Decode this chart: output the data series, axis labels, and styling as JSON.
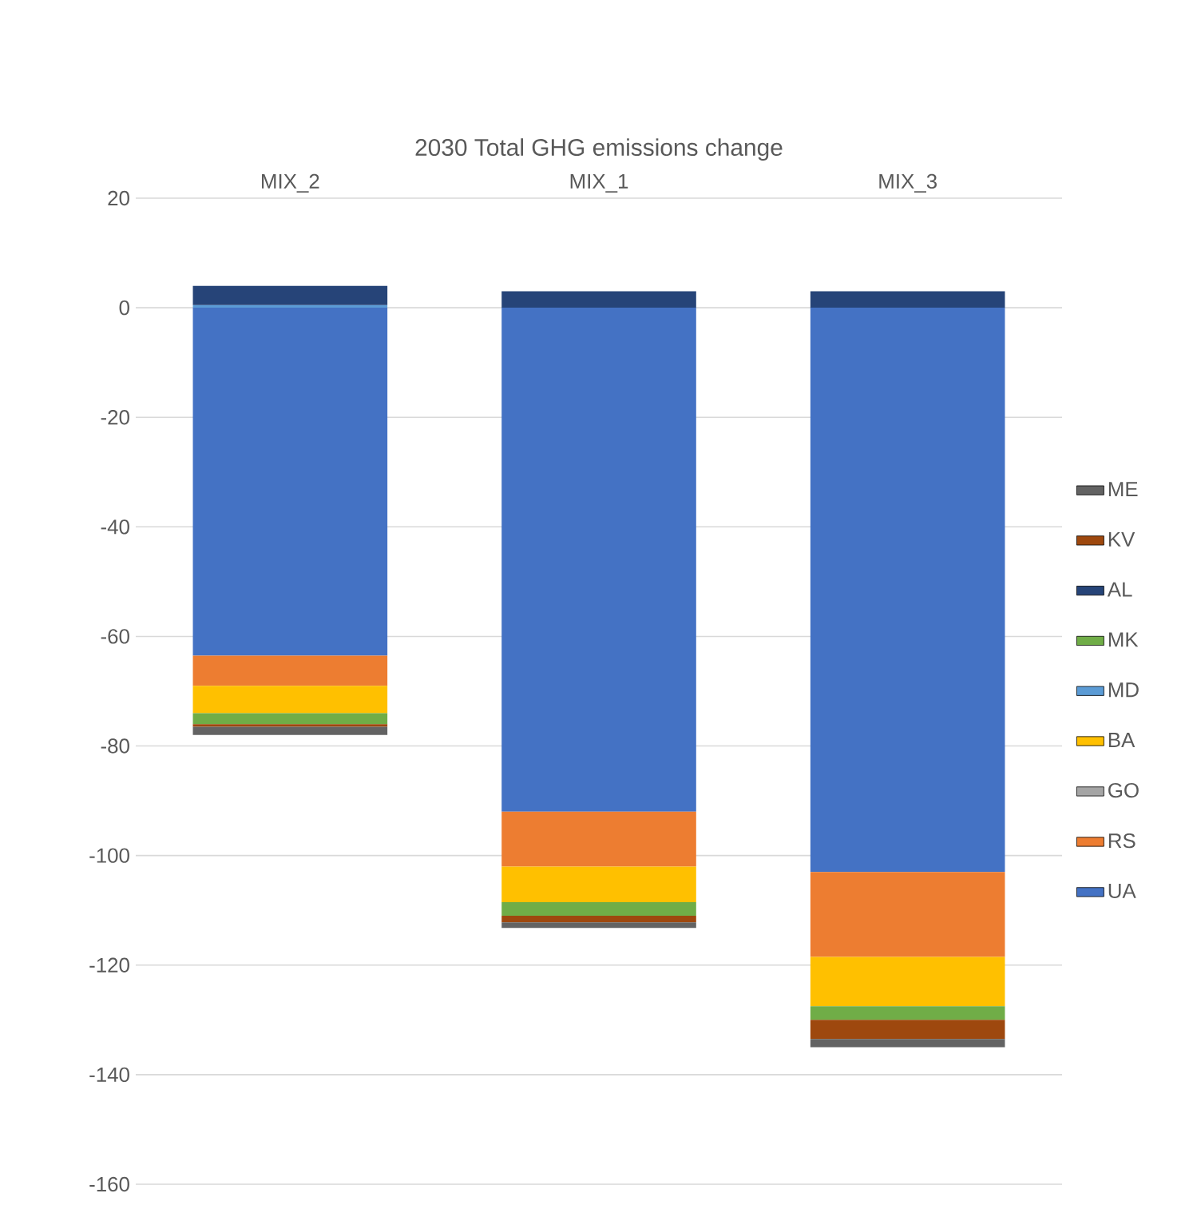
{
  "chart_data": {
    "type": "bar",
    "stacked": true,
    "title": "2030 Total GHG emissions change",
    "categories": [
      "MIX_2",
      "MIX_1",
      "MIX_3"
    ],
    "series": [
      {
        "name": "UA",
        "color": "#4472c4",
        "values": [
          -63.5,
          -92,
          -103
        ]
      },
      {
        "name": "RS",
        "color": "#ed7d31",
        "values": [
          -5.5,
          -10,
          -15.5
        ]
      },
      {
        "name": "GO",
        "color": "#a5a5a5",
        "values": [
          0,
          0,
          0
        ]
      },
      {
        "name": "BA",
        "color": "#ffc000",
        "values": [
          -5,
          -6.5,
          -9
        ]
      },
      {
        "name": "MD",
        "color": "#5b9bd5",
        "values": [
          0.5,
          0,
          0
        ]
      },
      {
        "name": "MK",
        "color": "#70ad47",
        "values": [
          -2,
          -2.5,
          -2.5
        ]
      },
      {
        "name": "AL",
        "color": "#264478",
        "values": [
          3.5,
          3,
          3
        ]
      },
      {
        "name": "KV",
        "color": "#9e480e",
        "values": [
          -0.5,
          -1.2,
          -3.5
        ]
      },
      {
        "name": "ME",
        "color": "#636363",
        "values": [
          -1.5,
          -1,
          -1.5
        ]
      }
    ],
    "ylim": [
      -160,
      20
    ],
    "yticks": [
      -160,
      -140,
      -120,
      -100,
      -80,
      -60,
      -40,
      -20,
      0,
      20
    ],
    "grid": "y",
    "legend": "right"
  }
}
